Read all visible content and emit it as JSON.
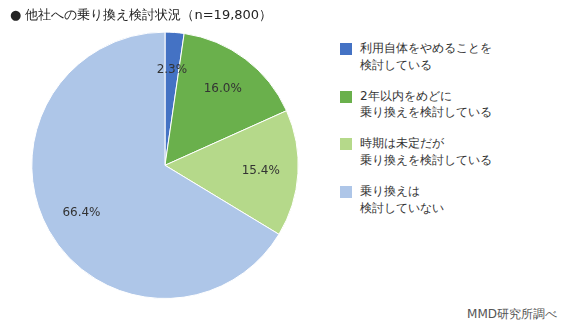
{
  "chart_data": {
    "type": "pie",
    "title": "● 他社への乗り換え検討状況（n=19,800）",
    "categories": [
      "利用自体をやめることを\n検討している",
      "2年以内をめどに\n乗り換えを検討している",
      "時期は未定だが\n乗り換えを検討している",
      "乗り換えは\n検討していない"
    ],
    "values": [
      2.3,
      16.0,
      15.4,
      66.4
    ],
    "value_labels": [
      "2.3%",
      "16.0%",
      "15.4%",
      "66.4%"
    ],
    "colors": [
      "#4472c4",
      "#6ab04c",
      "#b5d98a",
      "#aec6e8"
    ],
    "data_labels": true,
    "legend": "right",
    "annotations": [
      "MMD研究所調べ"
    ]
  }
}
